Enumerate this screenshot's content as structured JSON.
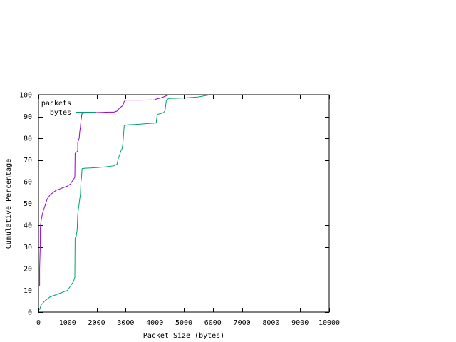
{
  "chart_data": {
    "type": "line",
    "title": "",
    "xlabel": "Packet Size (bytes)",
    "ylabel": "Cumulative Percentage",
    "xlim": [
      0,
      10000
    ],
    "ylim": [
      0,
      100
    ],
    "x_ticks": [
      0,
      1000,
      2000,
      3000,
      4000,
      5000,
      6000,
      7000,
      8000,
      9000,
      10000
    ],
    "y_ticks": [
      0,
      10,
      20,
      30,
      40,
      50,
      60,
      70,
      80,
      90,
      100
    ],
    "grid": false,
    "legend_position": "top-left",
    "series": [
      {
        "name": "packets",
        "color": "#9400d3",
        "x": [
          40,
          40,
          60,
          60,
          80,
          100,
          150,
          200,
          250,
          300,
          350,
          400,
          500,
          600,
          700,
          800,
          900,
          1000,
          1050,
          1100,
          1150,
          1200,
          1250,
          1260,
          1300,
          1350,
          1350,
          1400,
          1420,
          1440,
          1460,
          1480,
          1500,
          1500,
          1600,
          1800,
          2000,
          2200,
          2400,
          2600,
          2700,
          2800,
          2850,
          2900,
          2950,
          3000,
          3100,
          3500,
          4000,
          4050,
          4100,
          4200,
          4300,
          4400,
          4450,
          4500,
          5000,
          5500
        ],
        "y": [
          12,
          20,
          30,
          38,
          41,
          43,
          46,
          48,
          50,
          52,
          53,
          54,
          55,
          56,
          56.5,
          57,
          57.5,
          58,
          58.5,
          59,
          60,
          61,
          62,
          73,
          73.5,
          74,
          78,
          80,
          83,
          85,
          88,
          90,
          91.5,
          91.5,
          91.6,
          91.7,
          91.8,
          91.9,
          92,
          92,
          92.5,
          94,
          94.5,
          95,
          97,
          97.5,
          97.5,
          97.5,
          97.6,
          98,
          98.2,
          98.5,
          99,
          99.5,
          99.8,
          100,
          100,
          100
        ]
      },
      {
        "name": "bytes",
        "color": "#009e73",
        "x": [
          40,
          60,
          80,
          100,
          150,
          200,
          300,
          400,
          500,
          600,
          700,
          800,
          900,
          1000,
          1050,
          1100,
          1150,
          1200,
          1250,
          1260,
          1300,
          1330,
          1350,
          1380,
          1400,
          1420,
          1440,
          1460,
          1480,
          1500,
          1600,
          1800,
          2000,
          2300,
          2600,
          2700,
          2750,
          2800,
          2830,
          2870,
          2900,
          2950,
          3000,
          3100,
          3300,
          3500,
          3800,
          4050,
          4080,
          4100,
          4200,
          4300,
          4350,
          4400,
          4450,
          4500,
          5000,
          5500,
          5800,
          5900
        ],
        "y": [
          1,
          2,
          3,
          3.5,
          4,
          5,
          6,
          7,
          7.5,
          8,
          8.5,
          9,
          9.5,
          10,
          11,
          12,
          13,
          14,
          16,
          34,
          35,
          38,
          45,
          48,
          50,
          52,
          54,
          60,
          62,
          66,
          66.2,
          66.3,
          66.5,
          66.8,
          67.3,
          68,
          71,
          72.5,
          74,
          75,
          77,
          86,
          86,
          86.2,
          86.3,
          86.5,
          86.8,
          87,
          90.5,
          91,
          91.3,
          91.8,
          92.5,
          97.5,
          98,
          98.3,
          98.5,
          99,
          99.7,
          100
        ]
      }
    ]
  }
}
